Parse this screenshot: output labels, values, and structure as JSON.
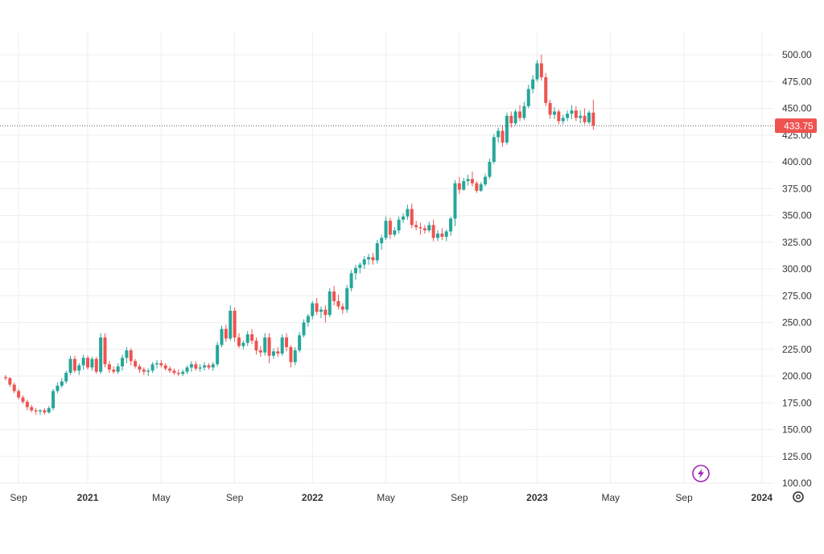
{
  "chart_data": {
    "type": "candlestick",
    "title": "",
    "xlabel": "",
    "ylabel": "",
    "ylim": [
      100,
      510
    ],
    "y_ticks": [
      "100.00",
      "125.00",
      "150.00",
      "175.00",
      "200.00",
      "225.00",
      "250.00",
      "275.00",
      "300.00",
      "325.00",
      "350.00",
      "375.00",
      "400.00",
      "425.00",
      "450.00",
      "475.00",
      "500.00"
    ],
    "x_ticks": [
      {
        "label": "Sep",
        "week": 3
      },
      {
        "label": "2021",
        "week": 19
      },
      {
        "label": "May",
        "week": 36
      },
      {
        "label": "Sep",
        "week": 53
      },
      {
        "label": "2022",
        "week": 71
      },
      {
        "label": "May",
        "week": 88
      },
      {
        "label": "Sep",
        "week": 105
      },
      {
        "label": "2023",
        "week": 123
      },
      {
        "label": "May",
        "week": 140
      },
      {
        "label": "Sep",
        "week": 157
      },
      {
        "label": "2024",
        "week": 175
      }
    ],
    "last_price": 433.75,
    "last_price_label": "433.75",
    "colors": {
      "up": "#26a69a",
      "down": "#ef5350",
      "grid": "#eeeeee",
      "axis_text": "#333333",
      "dotted": "#555555"
    },
    "candles": [
      [
        199,
        201,
        196,
        198
      ],
      [
        198,
        199,
        190,
        192
      ],
      [
        192,
        194,
        184,
        186
      ],
      [
        186,
        188,
        178,
        180
      ],
      [
        180,
        182,
        174,
        176
      ],
      [
        176,
        178,
        168,
        171
      ],
      [
        171,
        173,
        166,
        168
      ],
      [
        168,
        170,
        164,
        167
      ],
      [
        167,
        169,
        164,
        168
      ],
      [
        168,
        170,
        164,
        166
      ],
      [
        166,
        172,
        165,
        170
      ],
      [
        170,
        188,
        168,
        186
      ],
      [
        186,
        194,
        184,
        191
      ],
      [
        191,
        198,
        189,
        195
      ],
      [
        195,
        205,
        193,
        203
      ],
      [
        203,
        219,
        201,
        216
      ],
      [
        216,
        219,
        203,
        205
      ],
      [
        205,
        212,
        201,
        210
      ],
      [
        210,
        220,
        206,
        217
      ],
      [
        217,
        219,
        206,
        208
      ],
      [
        208,
        218,
        205,
        216
      ],
      [
        216,
        218,
        202,
        204
      ],
      [
        204,
        240,
        202,
        236
      ],
      [
        236,
        240,
        208,
        211
      ],
      [
        211,
        214,
        203,
        206
      ],
      [
        206,
        209,
        202,
        204
      ],
      [
        204,
        212,
        202,
        209
      ],
      [
        209,
        220,
        205,
        217
      ],
      [
        217,
        227,
        212,
        224
      ],
      [
        224,
        226,
        210,
        214
      ],
      [
        214,
        216,
        207,
        209
      ],
      [
        209,
        211,
        203,
        206
      ],
      [
        206,
        208,
        201,
        204
      ],
      [
        204,
        207,
        200,
        205
      ],
      [
        205,
        213,
        203,
        211
      ],
      [
        211,
        215,
        207,
        212
      ],
      [
        212,
        215,
        208,
        210
      ],
      [
        210,
        212,
        205,
        207
      ],
      [
        207,
        209,
        203,
        205
      ],
      [
        205,
        207,
        201,
        203
      ],
      [
        203,
        206,
        200,
        202
      ],
      [
        202,
        206,
        200,
        204
      ],
      [
        204,
        210,
        202,
        208
      ],
      [
        208,
        214,
        204,
        211
      ],
      [
        211,
        214,
        205,
        207
      ],
      [
        207,
        211,
        204,
        208
      ],
      [
        208,
        213,
        205,
        210
      ],
      [
        210,
        212,
        206,
        208
      ],
      [
        208,
        213,
        205,
        211
      ],
      [
        211,
        232,
        209,
        229
      ],
      [
        229,
        247,
        227,
        244
      ],
      [
        244,
        248,
        232,
        235
      ],
      [
        235,
        266,
        233,
        261
      ],
      [
        261,
        264,
        232,
        236
      ],
      [
        236,
        240,
        226,
        228
      ],
      [
        228,
        233,
        225,
        231
      ],
      [
        231,
        242,
        228,
        239
      ],
      [
        239,
        244,
        230,
        233
      ],
      [
        233,
        236,
        220,
        224
      ],
      [
        224,
        228,
        218,
        222
      ],
      [
        222,
        240,
        219,
        236
      ],
      [
        236,
        240,
        212,
        219
      ],
      [
        219,
        226,
        216,
        223
      ],
      [
        223,
        227,
        218,
        221
      ],
      [
        221,
        239,
        219,
        236
      ],
      [
        236,
        240,
        223,
        227
      ],
      [
        227,
        229,
        208,
        213
      ],
      [
        213,
        227,
        210,
        224
      ],
      [
        224,
        241,
        222,
        238
      ],
      [
        238,
        253,
        236,
        250
      ],
      [
        250,
        258,
        246,
        256
      ],
      [
        256,
        270,
        253,
        268
      ],
      [
        268,
        273,
        257,
        260
      ],
      [
        260,
        265,
        254,
        262
      ],
      [
        262,
        266,
        250,
        257
      ],
      [
        257,
        282,
        255,
        279
      ],
      [
        279,
        284,
        266,
        270
      ],
      [
        270,
        276,
        262,
        265
      ],
      [
        265,
        268,
        258,
        262
      ],
      [
        262,
        285,
        259,
        282
      ],
      [
        282,
        299,
        279,
        296
      ],
      [
        296,
        304,
        290,
        301
      ],
      [
        301,
        306,
        296,
        304
      ],
      [
        304,
        312,
        300,
        309
      ],
      [
        309,
        314,
        304,
        311
      ],
      [
        311,
        315,
        304,
        308
      ],
      [
        308,
        327,
        305,
        324
      ],
      [
        324,
        332,
        318,
        329
      ],
      [
        329,
        349,
        327,
        345
      ],
      [
        345,
        348,
        328,
        332
      ],
      [
        332,
        339,
        330,
        336
      ],
      [
        336,
        349,
        333,
        346
      ],
      [
        346,
        352,
        343,
        349
      ],
      [
        349,
        360,
        346,
        356
      ],
      [
        356,
        361,
        338,
        341
      ],
      [
        341,
        345,
        336,
        339
      ],
      [
        339,
        343,
        332,
        338
      ],
      [
        338,
        341,
        333,
        336
      ],
      [
        336,
        344,
        334,
        341
      ],
      [
        341,
        346,
        326,
        329
      ],
      [
        329,
        336,
        326,
        333
      ],
      [
        333,
        338,
        327,
        330
      ],
      [
        330,
        337,
        326,
        335
      ],
      [
        335,
        349,
        331,
        347
      ],
      [
        347,
        383,
        340,
        380
      ],
      [
        380,
        386,
        370,
        374
      ],
      [
        374,
        385,
        373,
        382
      ],
      [
        382,
        388,
        378,
        384
      ],
      [
        384,
        391,
        377,
        380
      ],
      [
        380,
        382,
        371,
        373
      ],
      [
        373,
        381,
        372,
        379
      ],
      [
        379,
        389,
        377,
        386
      ],
      [
        386,
        403,
        384,
        400
      ],
      [
        400,
        426,
        398,
        423
      ],
      [
        423,
        432,
        418,
        429
      ],
      [
        429,
        434,
        414,
        418
      ],
      [
        418,
        446,
        416,
        443
      ],
      [
        443,
        447,
        432,
        436
      ],
      [
        436,
        449,
        434,
        447
      ],
      [
        447,
        453,
        438,
        441
      ],
      [
        441,
        456,
        439,
        452
      ],
      [
        452,
        472,
        450,
        468
      ],
      [
        468,
        481,
        464,
        477
      ],
      [
        477,
        495,
        475,
        492
      ],
      [
        492,
        500,
        476,
        479
      ],
      [
        479,
        483,
        452,
        455
      ],
      [
        455,
        458,
        440,
        444
      ],
      [
        444,
        451,
        440,
        447
      ],
      [
        447,
        449,
        435,
        438
      ],
      [
        438,
        444,
        435,
        441
      ],
      [
        441,
        448,
        438,
        445
      ],
      [
        445,
        453,
        440,
        448
      ],
      [
        448,
        452,
        438,
        441
      ],
      [
        441,
        448,
        436,
        443
      ],
      [
        443,
        450,
        435,
        437
      ],
      [
        437,
        448,
        435,
        446
      ],
      [
        446,
        458,
        430,
        434
      ]
    ]
  },
  "badge": {
    "icon": "lightning-icon"
  },
  "settings": {
    "icon": "gear-icon"
  }
}
